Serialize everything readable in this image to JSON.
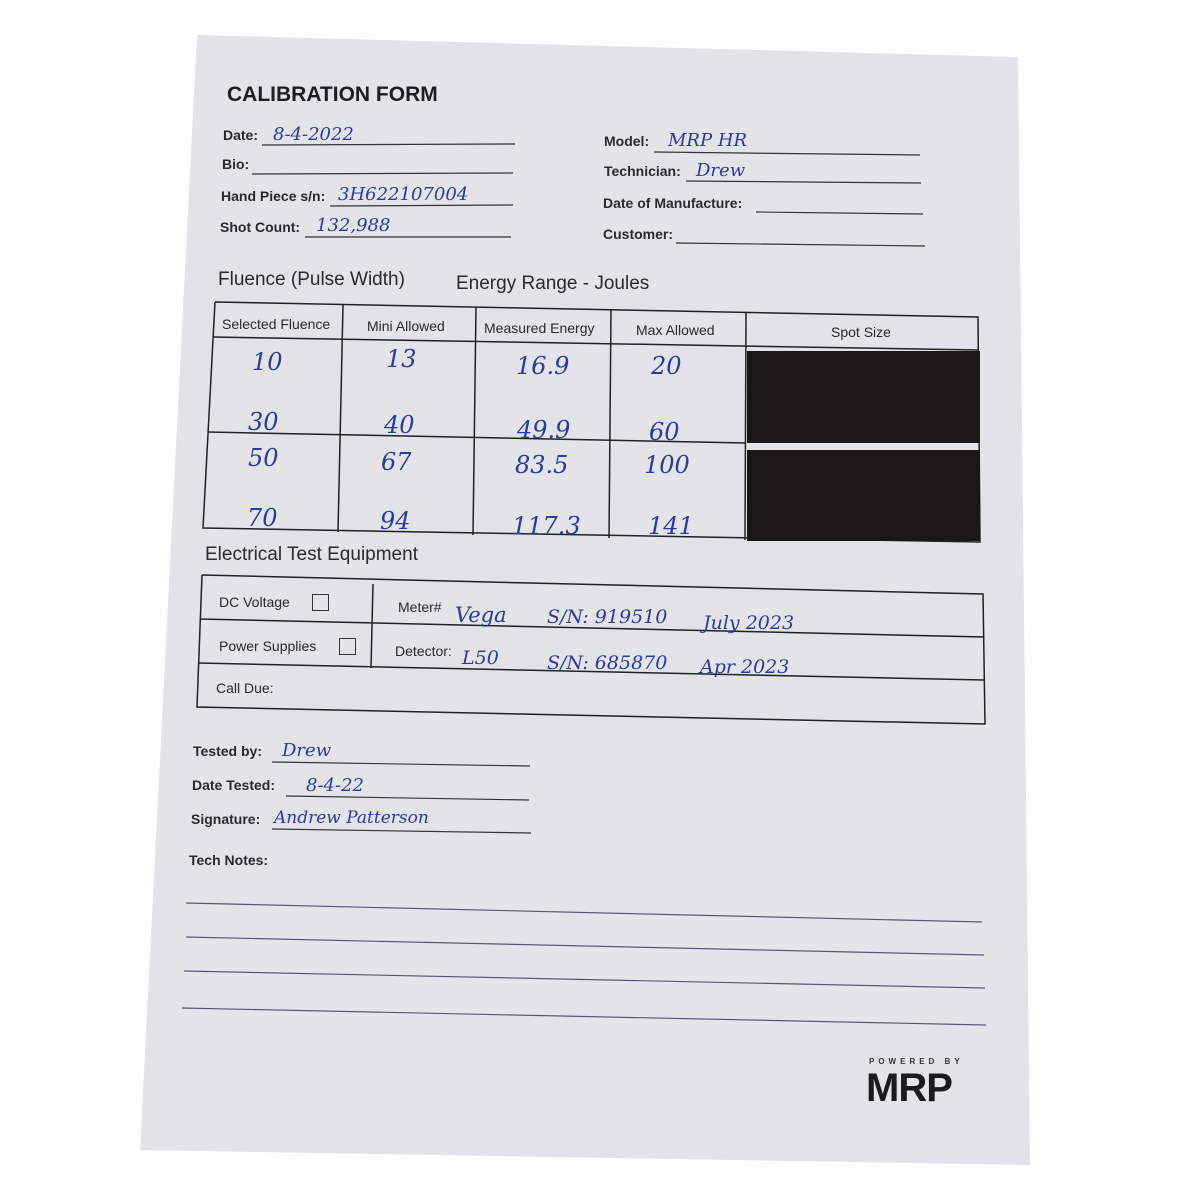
{
  "form": {
    "title": "CALIBRATION FORM",
    "fields_left": [
      {
        "label": "Date:",
        "value": "8-4-2022"
      },
      {
        "label": "Bio:",
        "value": ""
      },
      {
        "label": "Hand Piece s/n:",
        "value": "3H622107004"
      },
      {
        "label": "Shot Count:",
        "value": "132,988"
      }
    ],
    "fields_right": [
      {
        "label": "Model:",
        "value": "MRP HR"
      },
      {
        "label": "Technician:",
        "value": "Drew"
      },
      {
        "label": "Date of Manufacture:",
        "value": ""
      },
      {
        "label": "Customer:",
        "value": ""
      }
    ]
  },
  "energy": {
    "heading_left": "Fluence (Pulse Width)",
    "heading_right": "Energy Range - Joules",
    "columns": [
      "Selected Fluence",
      "Mini Allowed",
      "Measured Energy",
      "Max Allowed",
      "Spot Size"
    ],
    "rows": [
      [
        "10",
        "13",
        "16.9",
        "20"
      ],
      [
        "30",
        "40",
        "49.9",
        "60"
      ],
      [
        "50",
        "67",
        "83.5",
        "100"
      ],
      [
        "70",
        "94",
        "117.3",
        "141"
      ]
    ],
    "spot_size_color": "#1a1816"
  },
  "electrical": {
    "heading": "Electrical Test Equipment",
    "dc_voltage": "DC Voltage",
    "power_supplies": "Power Supplies",
    "call_due": "Call Due:",
    "meter_label": "Meter#",
    "meter_name": "Vega",
    "meter_sn": "S/N: 919510",
    "meter_date": "July 2023",
    "detector_label": "Detector:",
    "detector_name": "L50",
    "detector_sn": "S/N: 685870",
    "detector_date": "Apr 2023"
  },
  "signoff": {
    "tested_by_label": "Tested by:",
    "tested_by": "Drew",
    "date_tested_label": "Date Tested:",
    "date_tested": "8-4-22",
    "signature_label": "Signature:",
    "signature": "Andrew Patterson",
    "tech_notes_label": "Tech Notes:"
  },
  "brand": {
    "powered_by": "POWERED BY",
    "logo": "MRP"
  },
  "colors": {
    "ink": "#2b3b9c",
    "paper": "#e6e6ea"
  }
}
